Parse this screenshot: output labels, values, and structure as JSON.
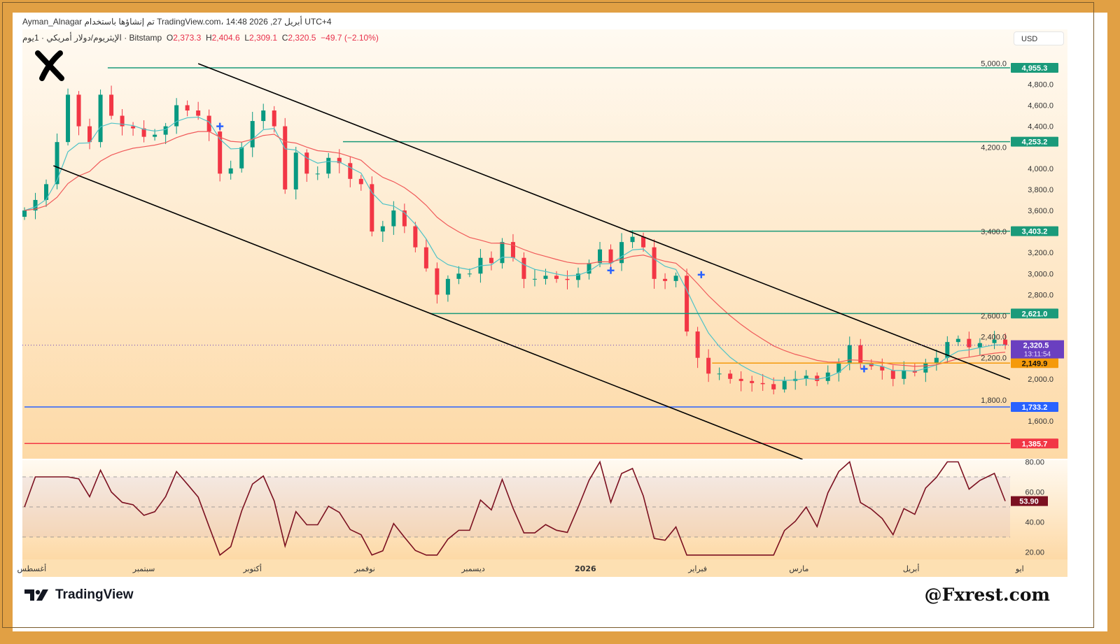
{
  "header": {
    "line1": "Ayman_Alnagar تم إنشاؤها باستخدام TradingView.com، 14:48 2026 ,27 أبريل UTC+4",
    "symbol": "الإيثريوم/دولار أمريكي · 1يوم · Bitstamp",
    "o_label": "O",
    "o": "2,373.3",
    "h_label": "H",
    "h": "2,404.6",
    "l_label": "L",
    "l": "2,309.1",
    "c_label": "C",
    "c": "2,320.5",
    "change": "−49.7 (−2.10%)"
  },
  "currency": "USD",
  "footer": {
    "brand": "TradingView",
    "watermark": "@Fxrest.com"
  },
  "colors": {
    "up": "#089981",
    "down": "#f23645",
    "fast_ma": "#4fc3c7",
    "slow_ma": "#f05a5a",
    "rsi": "#7b1020",
    "level": "#1a9a7a",
    "support_orange": "#f59a0b",
    "support_blue": "#2962ff",
    "support_red": "#f23645",
    "current": "#6a3fc0"
  },
  "chart_data": {
    "type": "candlestick",
    "ylim": [
      1233,
      5050
    ],
    "y_ticks": [
      "5,000.0",
      "4,800.0",
      "4,600.0",
      "4,400.0",
      "4,200.0",
      "4,000.0",
      "3,800.0",
      "3,600.0",
      "3,400.0",
      "3,200.0",
      "3,000.0",
      "2,800.0",
      "2,600.0",
      "2,400.0",
      "2,200.0",
      "2,000.0",
      "1,800.0",
      "1,600.0"
    ],
    "x_ticks": [
      {
        "date": "2025-08-01",
        "label": "أغسطس"
      },
      {
        "date": "2025-09-01",
        "label": "سبتمبر"
      },
      {
        "date": "2025-10-01",
        "label": "أكتوبر"
      },
      {
        "date": "2025-11-01",
        "label": "نوفمبر"
      },
      {
        "date": "2025-12-01",
        "label": "ديسمبر"
      },
      {
        "date": "2026-01-01",
        "label": "2026"
      },
      {
        "date": "2026-02-01",
        "label": "فبراير"
      },
      {
        "date": "2026-03-01",
        "label": "مارس"
      },
      {
        "date": "2026-04-01",
        "label": "أبريل"
      },
      {
        "date": "2026-05-01",
        "label": "ايو"
      }
    ],
    "closes": [
      [
        "2025-07-30",
        3600
      ],
      [
        "2025-08-02",
        3700
      ],
      [
        "2025-08-05",
        3850
      ],
      [
        "2025-08-08",
        4250
      ],
      [
        "2025-08-11",
        4700
      ],
      [
        "2025-08-14",
        4400
      ],
      [
        "2025-08-17",
        4250
      ],
      [
        "2025-08-20",
        4700
      ],
      [
        "2025-08-23",
        4500
      ],
      [
        "2025-08-26",
        4400
      ],
      [
        "2025-08-29",
        4380
      ],
      [
        "2025-09-01",
        4300
      ],
      [
        "2025-09-04",
        4320
      ],
      [
        "2025-09-07",
        4400
      ],
      [
        "2025-09-10",
        4600
      ],
      [
        "2025-09-13",
        4550
      ],
      [
        "2025-09-16",
        4500
      ],
      [
        "2025-09-19",
        4350
      ],
      [
        "2025-09-22",
        3950
      ],
      [
        "2025-09-25",
        4000
      ],
      [
        "2025-09-28",
        4200
      ],
      [
        "2025-10-01",
        4450
      ],
      [
        "2025-10-04",
        4550
      ],
      [
        "2025-10-07",
        4400
      ],
      [
        "2025-10-10",
        3800
      ],
      [
        "2025-10-13",
        4150
      ],
      [
        "2025-10-16",
        3950
      ],
      [
        "2025-10-19",
        3950
      ],
      [
        "2025-10-22",
        4100
      ],
      [
        "2025-10-25",
        4050
      ],
      [
        "2025-10-28",
        3900
      ],
      [
        "2025-10-31",
        3850
      ],
      [
        "2025-11-03",
        3400
      ],
      [
        "2025-11-06",
        3450
      ],
      [
        "2025-11-09",
        3600
      ],
      [
        "2025-11-12",
        3450
      ],
      [
        "2025-11-15",
        3250
      ],
      [
        "2025-11-18",
        3050
      ],
      [
        "2025-11-21",
        2800
      ],
      [
        "2025-11-24",
        2950
      ],
      [
        "2025-11-27",
        3000
      ],
      [
        "2025-11-30",
        3000
      ],
      [
        "2025-12-03",
        3150
      ],
      [
        "2025-12-06",
        3100
      ],
      [
        "2025-12-09",
        3300
      ],
      [
        "2025-12-12",
        3150
      ],
      [
        "2025-12-15",
        2950
      ],
      [
        "2025-12-18",
        2950
      ],
      [
        "2025-12-21",
        2980
      ],
      [
        "2025-12-24",
        2950
      ],
      [
        "2025-12-27",
        2940
      ],
      [
        "2025-12-30",
        3000
      ],
      [
        "2026-01-02",
        3100
      ],
      [
        "2026-01-05",
        3230
      ],
      [
        "2026-01-08",
        3100
      ],
      [
        "2026-01-11",
        3300
      ],
      [
        "2026-01-14",
        3350
      ],
      [
        "2026-01-17",
        3250
      ],
      [
        "2026-01-20",
        2950
      ],
      [
        "2026-01-23",
        2930
      ],
      [
        "2026-01-26",
        2980
      ],
      [
        "2026-01-29",
        2450
      ],
      [
        "2026-02-01",
        2200
      ],
      [
        "2026-02-04",
        2050
      ],
      [
        "2026-02-07",
        2050
      ],
      [
        "2026-02-10",
        2000
      ],
      [
        "2026-02-13",
        1980
      ],
      [
        "2026-02-16",
        1960
      ],
      [
        "2026-02-19",
        1950
      ],
      [
        "2026-02-22",
        1900
      ],
      [
        "2026-02-25",
        1980
      ],
      [
        "2026-02-28",
        2000
      ],
      [
        "2026-03-03",
        2030
      ],
      [
        "2026-03-06",
        1980
      ],
      [
        "2026-03-09",
        2060
      ],
      [
        "2026-03-12",
        2150
      ],
      [
        "2026-03-15",
        2320
      ],
      [
        "2026-03-18",
        2150
      ],
      [
        "2026-03-21",
        2120
      ],
      [
        "2026-03-24",
        2080
      ],
      [
        "2026-03-27",
        2000
      ],
      [
        "2026-03-30",
        2080
      ],
      [
        "2026-04-02",
        2060
      ],
      [
        "2026-04-05",
        2150
      ],
      [
        "2026-04-08",
        2200
      ],
      [
        "2026-04-11",
        2350
      ],
      [
        "2026-04-14",
        2380
      ],
      [
        "2026-04-17",
        2300
      ],
      [
        "2026-04-20",
        2340
      ],
      [
        "2026-04-24",
        2373.3
      ],
      [
        "2026-04-27",
        2320.5
      ]
    ],
    "levels": [
      {
        "price": 4955.3,
        "label": "4,955.3",
        "from": "2025-08-22",
        "color": "#1a9a7a"
      },
      {
        "price": 4253.2,
        "label": "4,253.2",
        "from": "2025-10-26",
        "color": "#1a9a7a"
      },
      {
        "price": 3403.2,
        "label": "3,403.2",
        "from": "2026-01-13",
        "color": "#1a9a7a"
      },
      {
        "price": 2621.0,
        "label": "2,621.0",
        "from": "2025-11-19",
        "color": "#1a9a7a"
      },
      {
        "price": 2149.9,
        "label": "2,149.9",
        "from": "2026-02-05",
        "color": "#f59a0b"
      },
      {
        "price": 1733.2,
        "label": "1,733.2",
        "from": "2025-07-30",
        "color": "#2962ff"
      },
      {
        "price": 1385.7,
        "label": "1,385.7",
        "from": "2025-07-30",
        "color": "#f23645"
      }
    ],
    "current_price": {
      "price": 2320.5,
      "label": "2,320.5",
      "countdown": "13:11:54"
    },
    "channel": {
      "upper": [
        [
          "2025-09-16",
          4995
        ],
        [
          "2026-04-29",
          1985
        ]
      ],
      "lower": [
        [
          "2025-08-07",
          4025
        ],
        [
          "2026-03-02",
          1235
        ]
      ]
    },
    "markers": [
      [
        "2025-09-22",
        4400
      ],
      [
        "2026-01-08",
        3030
      ],
      [
        "2026-02-02",
        2990
      ],
      [
        "2026-03-19",
        2095
      ]
    ],
    "rsi": {
      "ylim": [
        15,
        82
      ],
      "ticks": [
        "80.00",
        "60.00",
        "40.00",
        "20.00"
      ],
      "upper": 70,
      "lower": 30,
      "middle": 50,
      "last": "53.90"
    }
  }
}
